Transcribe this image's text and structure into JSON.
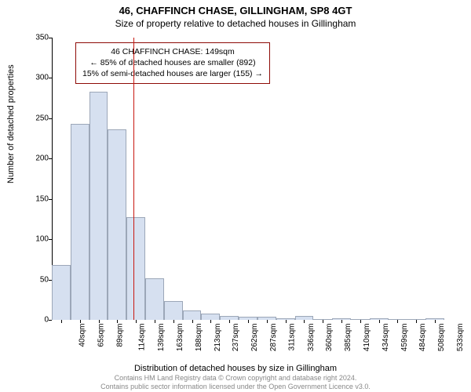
{
  "title": "46, CHAFFINCH CHASE, GILLINGHAM, SP8 4GT",
  "subtitle": "Size of property relative to detached houses in Gillingham",
  "ylabel": "Number of detached properties",
  "xlabel": "Distribution of detached houses by size in Gillingham",
  "chart": {
    "type": "histogram",
    "ylim": [
      0,
      350
    ],
    "ytick_step": 50,
    "x_categories": [
      "40sqm",
      "65sqm",
      "89sqm",
      "114sqm",
      "139sqm",
      "163sqm",
      "188sqm",
      "213sqm",
      "237sqm",
      "262sqm",
      "287sqm",
      "311sqm",
      "336sqm",
      "360sqm",
      "385sqm",
      "410sqm",
      "434sqm",
      "459sqm",
      "484sqm",
      "508sqm",
      "533sqm"
    ],
    "values": [
      68,
      243,
      283,
      236,
      127,
      52,
      23,
      12,
      8,
      5,
      4,
      4,
      2,
      5,
      0,
      2,
      0,
      2,
      0,
      0,
      2
    ],
    "bar_fill": "#d6e0f0",
    "bar_stroke": "#9ca7b8",
    "background_color": "#ffffff",
    "axis_color": "#000000",
    "bar_width_ratio": 1.0,
    "marker": {
      "position_index": 4.37,
      "color": "#c81810"
    }
  },
  "info_box": {
    "line1": "46 CHAFFINCH CHASE: 149sqm",
    "line2": "← 85% of detached houses are smaller (892)",
    "line3": "15% of semi-detached houses are larger (155) →",
    "border_color": "#8e0a06"
  },
  "footer": {
    "line1": "Contains HM Land Registry data © Crown copyright and database right 2024.",
    "line2": "Contains public sector information licensed under the Open Government Licence v3.0."
  }
}
